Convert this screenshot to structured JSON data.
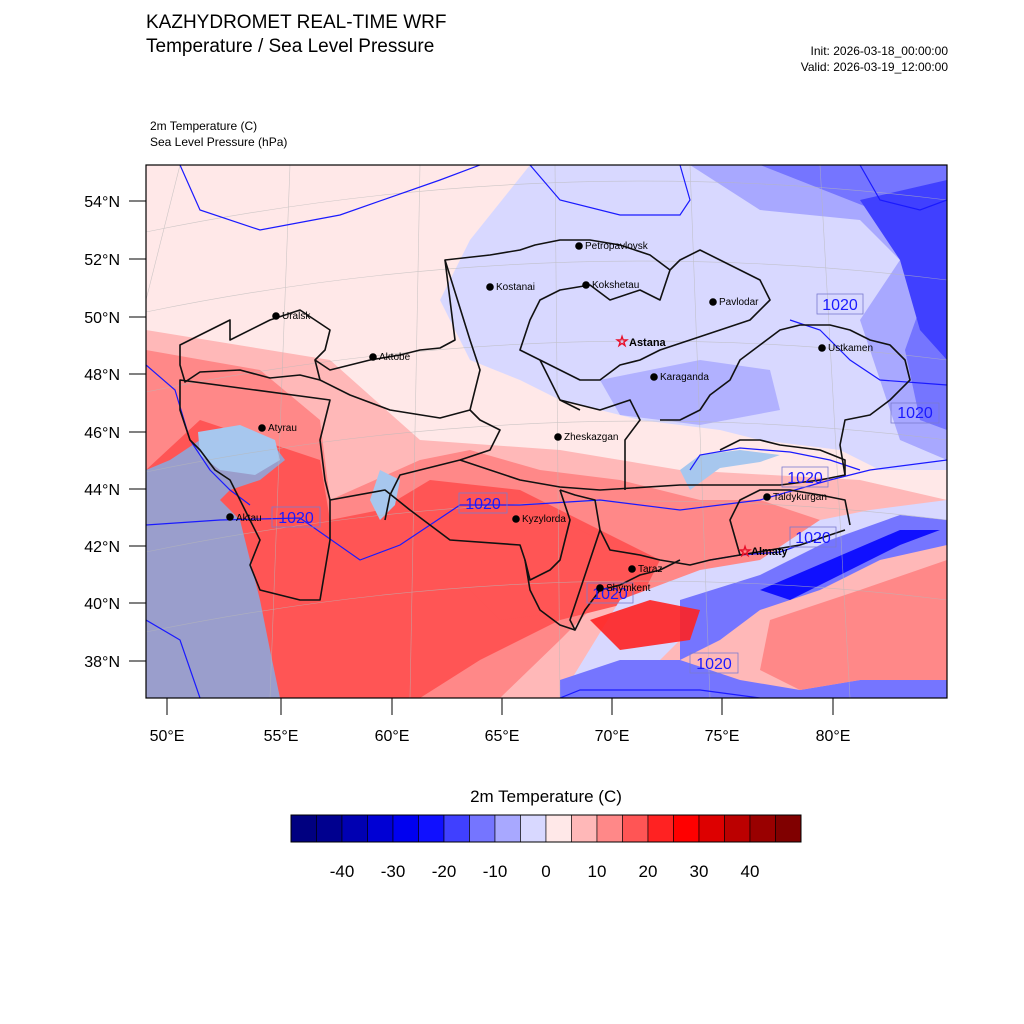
{
  "header": {
    "title": "KAZHYDROMET REAL-TIME WRF",
    "subtitle": "Temperature / Sea Level Pressure",
    "init": "Init: 2026-03-18_00:00:00",
    "valid": "Valid: 2026-03-19_12:00:00",
    "variable_1": "2m Temperature   (C)",
    "variable_2": "Sea Level Pressure   (hPa)"
  },
  "map": {
    "lat_labels": [
      "54°N",
      "52°N",
      "50°N",
      "48°N",
      "46°N",
      "44°N",
      "42°N",
      "40°N",
      "38°N"
    ],
    "lon_labels": [
      "50°E",
      "55°E",
      "60°E",
      "65°E",
      "70°E",
      "75°E",
      "80°E"
    ],
    "cities": [
      {
        "name": "Petropavlovsk",
        "bold": false,
        "capital": false
      },
      {
        "name": "Kostanai",
        "bold": false,
        "capital": false
      },
      {
        "name": "Kokshetau",
        "bold": false,
        "capital": false
      },
      {
        "name": "Pavlodar",
        "bold": false,
        "capital": false
      },
      {
        "name": "Uralsk",
        "bold": false,
        "capital": false
      },
      {
        "name": "Astana",
        "bold": true,
        "capital": true
      },
      {
        "name": "Ustkamen",
        "bold": false,
        "capital": false
      },
      {
        "name": "Aktobe",
        "bold": false,
        "capital": false
      },
      {
        "name": "Karaganda",
        "bold": false,
        "capital": false
      },
      {
        "name": "Atyrau",
        "bold": false,
        "capital": false
      },
      {
        "name": "Zheskazgan",
        "bold": false,
        "capital": false
      },
      {
        "name": "Taldykurgan",
        "bold": false,
        "capital": false
      },
      {
        "name": "Aktau",
        "bold": false,
        "capital": false
      },
      {
        "name": "Kyzylorda",
        "bold": false,
        "capital": false
      },
      {
        "name": "Almaty",
        "bold": true,
        "capital": true
      },
      {
        "name": "Taraz",
        "bold": false,
        "capital": false
      },
      {
        "name": "Shymkent",
        "bold": false,
        "capital": false
      }
    ],
    "isobar_labels": [
      "1020",
      "1020",
      "1020",
      "1020",
      "1020",
      "1020",
      "1020",
      "1020"
    ],
    "colors": {
      "capital_marker": "#e8102a",
      "isobar": "#1a1aff",
      "caspian_sea": "#9a9ecc",
      "water": "#a7c7ee"
    }
  },
  "colorbar": {
    "title": "2m Temperature  (C)",
    "tick_labels": [
      "-40",
      "-30",
      "-20",
      "-10",
      "0",
      "10",
      "20",
      "30",
      "40"
    ],
    "colors": [
      "#000080",
      "#00008f",
      "#0000b2",
      "#0000d4",
      "#0000f0",
      "#1010ff",
      "#4040ff",
      "#7575ff",
      "#a8a8ff",
      "#d8d8ff",
      "#ffe8e8",
      "#ffb8b8",
      "#ff8888",
      "#ff5555",
      "#ff2222",
      "#ff0000",
      "#dd0000",
      "#bb0000",
      "#990000",
      "#800000"
    ]
  }
}
